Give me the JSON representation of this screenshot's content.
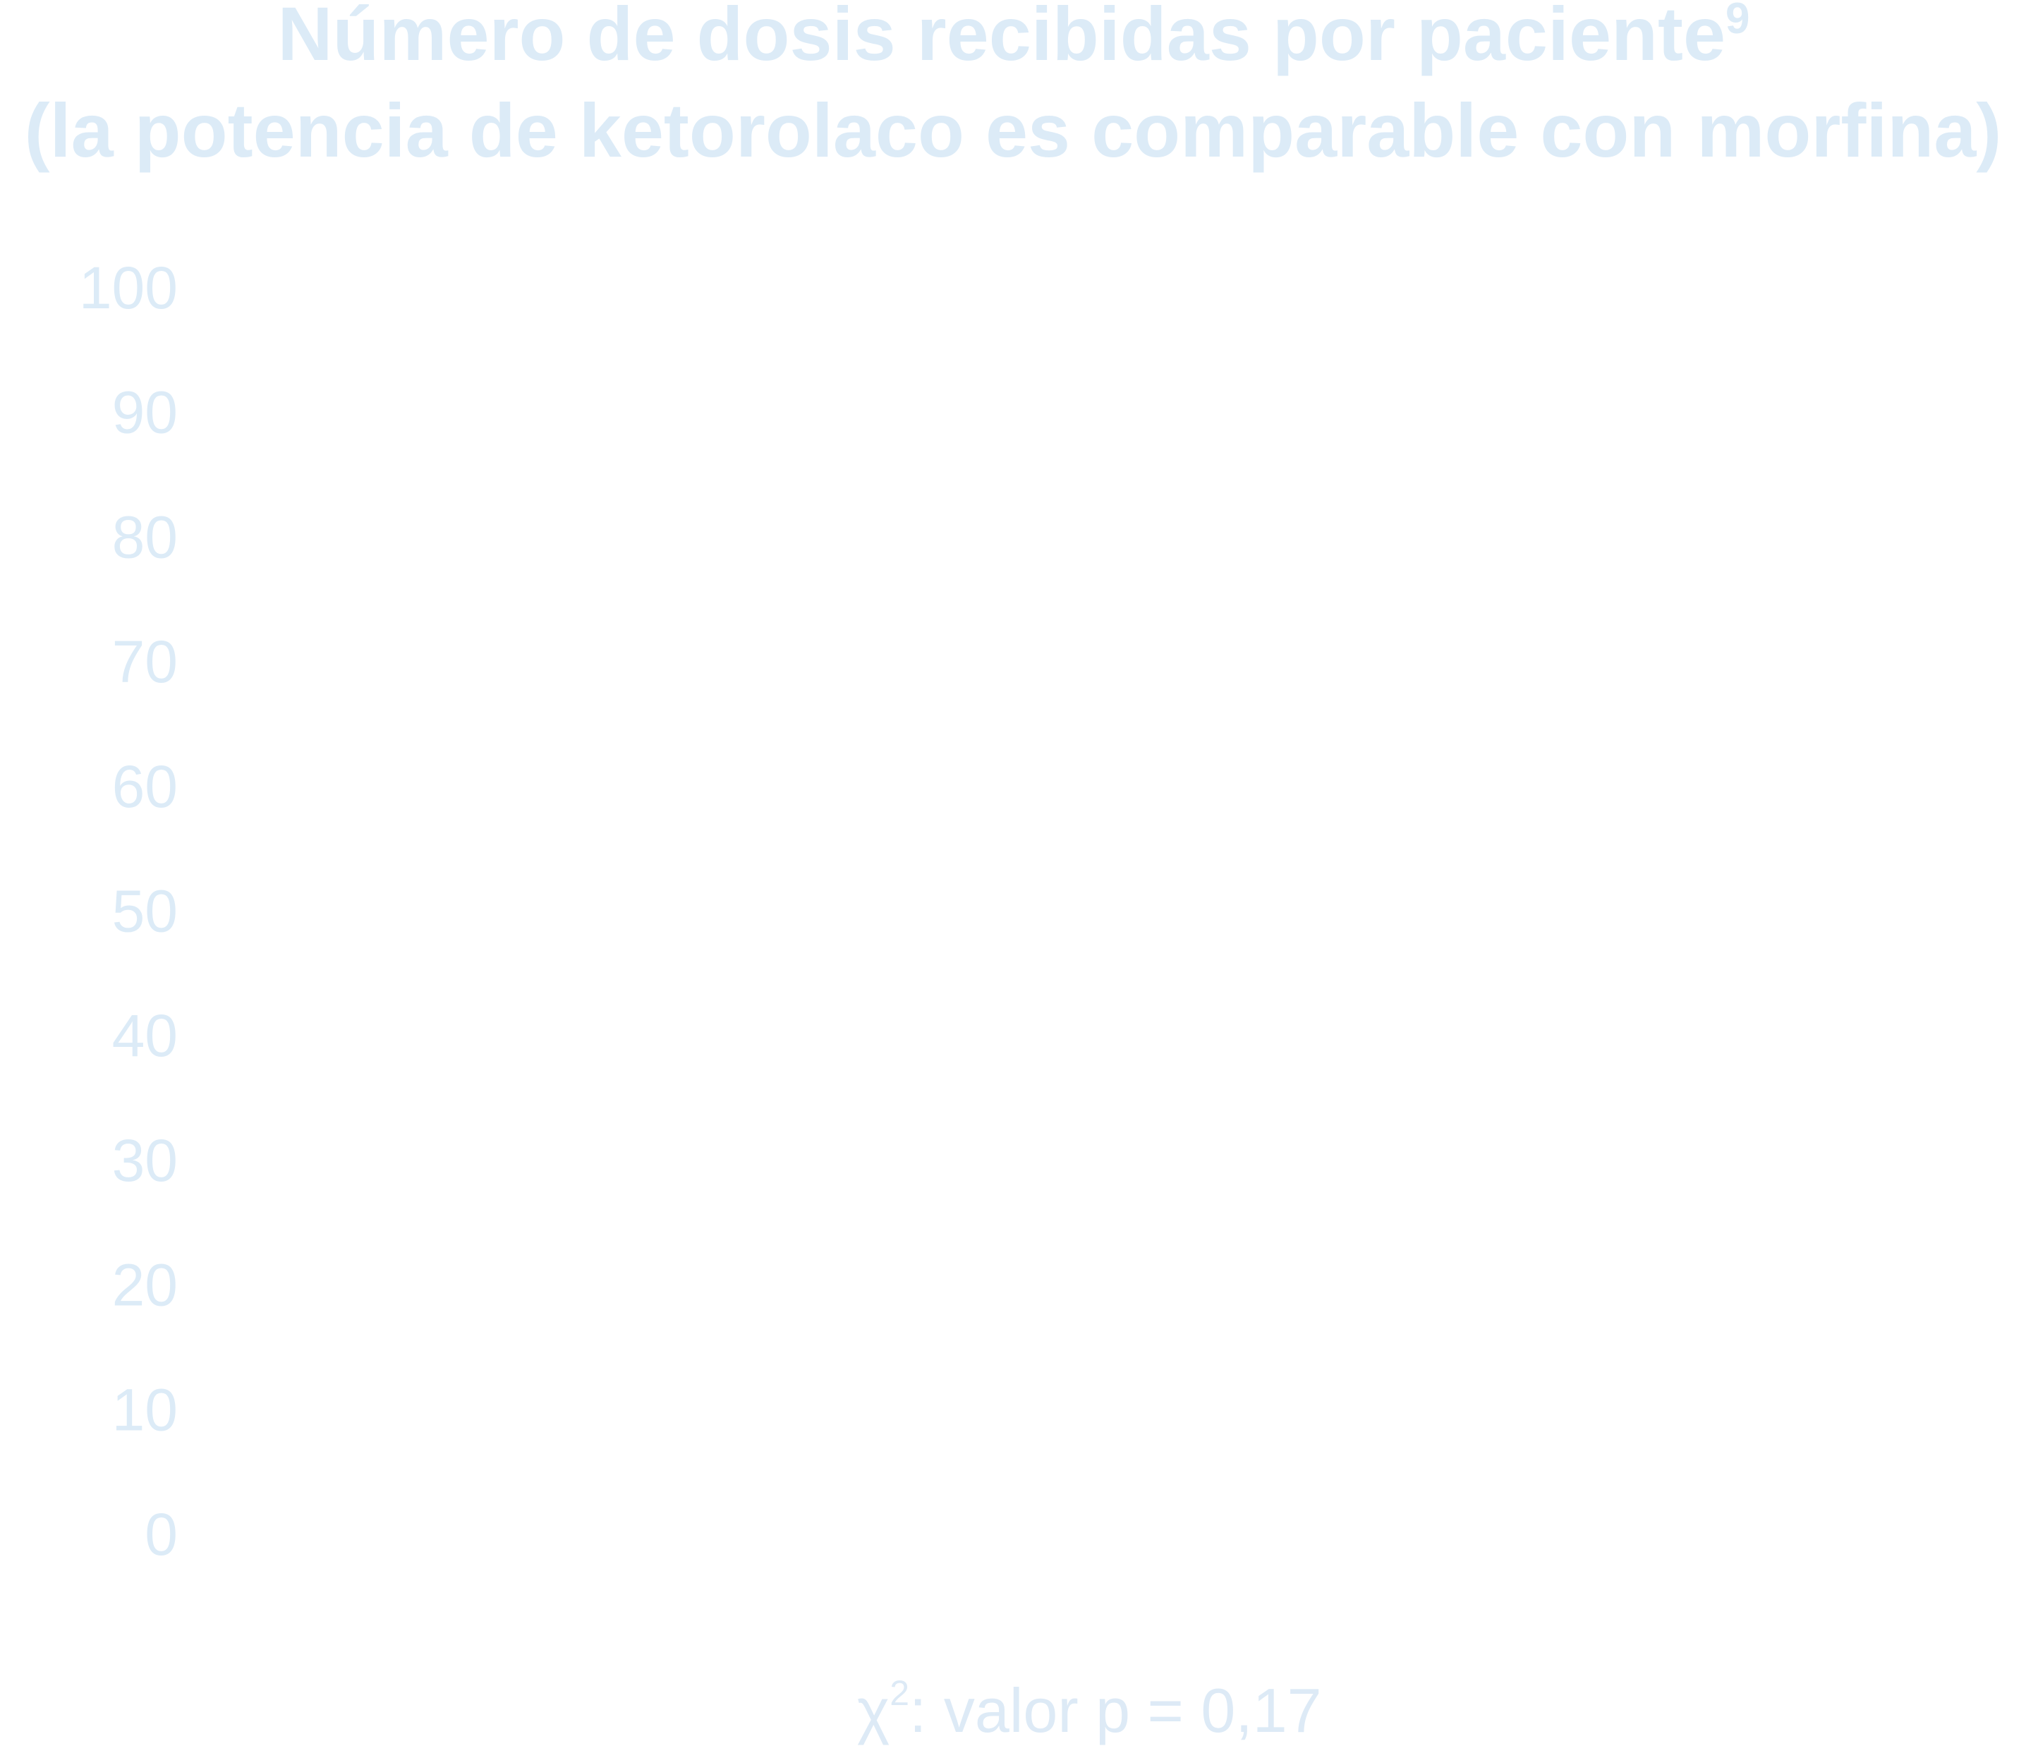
{
  "chart_data": {
    "type": "bar",
    "title_line1": "Número de dosis recibidas por paciente",
    "title_line1_superscript": "9",
    "title_line2": "(la potencia de ketorolaco es comparable con morfina)",
    "xlabel": "",
    "ylabel": "",
    "ylim": [
      0,
      100
    ],
    "yticks": [
      "100",
      "90",
      "80",
      "70",
      "60",
      "50",
      "40",
      "30",
      "20",
      "10",
      "0"
    ],
    "categories": [],
    "series": [],
    "grid": false,
    "annotation": {
      "symbol": "χ",
      "superscript": "2",
      "text": ": valor p = 0,17"
    },
    "colors": {
      "text": "#dcebf7",
      "annotation": "#ddeaf6"
    }
  }
}
